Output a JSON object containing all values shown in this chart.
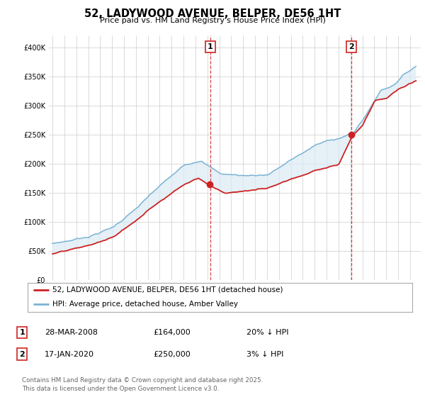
{
  "title": "52, LADYWOOD AVENUE, BELPER, DE56 1HT",
  "subtitle": "Price paid vs. HM Land Registry's House Price Index (HPI)",
  "ylim": [
    0,
    420000
  ],
  "yticks": [
    0,
    50000,
    100000,
    150000,
    200000,
    250000,
    300000,
    350000,
    400000
  ],
  "hpi_color": "#7ab3d4",
  "hpi_fill_color": "#daeaf5",
  "price_color": "#cc2222",
  "vline_color": "#cc2222",
  "sale1_year": 2008.23,
  "sale1_price": 164000,
  "sale2_year": 2020.05,
  "sale2_price": 250000,
  "legend_entries": [
    "52, LADYWOOD AVENUE, BELPER, DE56 1HT (detached house)",
    "HPI: Average price, detached house, Amber Valley"
  ],
  "table_rows": [
    {
      "num": "1",
      "date": "28-MAR-2008",
      "price": "£164,000",
      "hpi": "20% ↓ HPI"
    },
    {
      "num": "2",
      "date": "17-JAN-2020",
      "price": "£250,000",
      "hpi": "3% ↓ HPI"
    }
  ],
  "footnote": "Contains HM Land Registry data © Crown copyright and database right 2025.\nThis data is licensed under the Open Government Licence v3.0.",
  "background_color": "#ffffff",
  "grid_color": "#cccccc",
  "xstart": 1995,
  "xend": 2025.5
}
